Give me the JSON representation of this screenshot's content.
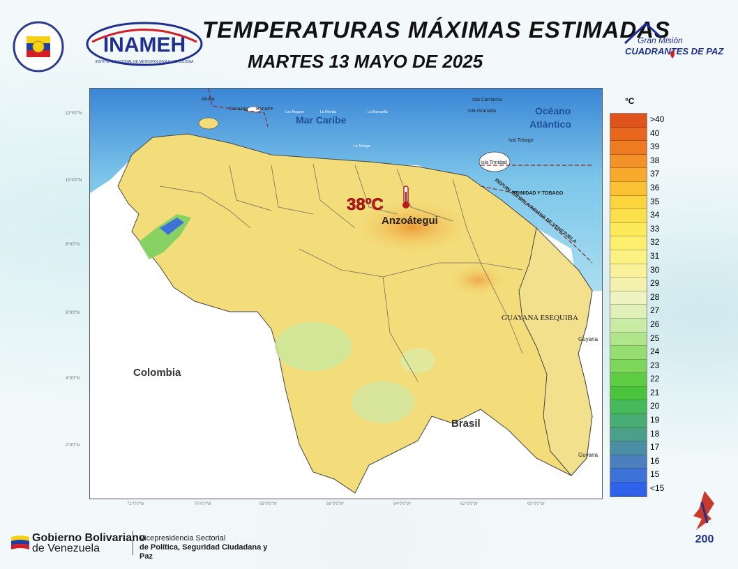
{
  "header": {
    "title": "TEMPERATURAS MÁXIMAS ESTIMADAS",
    "date": "MARTES 13 MAYO DE 2025",
    "inameh_logo_text": "INAMEH",
    "inameh_logo_subtext": "INSTITUTO NACIONAL DE METEOROLOGÍA E HIDROLOGÍA",
    "mission_logo_line1": "Gran Misión",
    "mission_logo_line2": "CUADRANTES DE PAZ"
  },
  "map": {
    "labels": {
      "mar_caribe": "Mar Caribe",
      "oceano": "Océano",
      "atlantico": "Atlántico",
      "colombia": "Colombia",
      "brasil": "Brasil",
      "guayana_esequiba": "GUAYANA ESEQUIBA",
      "guyana1": "Guyana",
      "guyana2": "Guyana",
      "trinidad_tobago": "TRINIDAD Y TOBAGO",
      "republica": "REPUBLICA BOLIVARIANA DE VENEZUELA",
      "aruba": "Aruba",
      "curazao": "Curazao",
      "bonaire": "Bonaire",
      "los_roques": "Los Roques",
      "la_orchila": "La Orchila",
      "la_blanquilla": "La Blanquilla",
      "la_tortuga": "La Tortuga",
      "carriacou": "Isla Carriacou",
      "granada": "Isla Granada",
      "tobago": "Isla Tobago",
      "trinidad": "Isla Trinidad"
    },
    "highlight": {
      "value": "38ºC",
      "state": "Anzoátegui"
    },
    "lat_ticks": [
      "12°0'0\"N",
      "10°0'0\"N",
      "8°0'0\"N",
      "6°0'0\"N",
      "4°0'0\"N",
      "2°0'0\"N"
    ],
    "lon_ticks": [
      "72°0'0\"W",
      "70°0'0\"W",
      "68°0'0\"W",
      "66°0'0\"W",
      "64°0'0\"W",
      "62°0'0\"W",
      "60°0'0\"W"
    ]
  },
  "legend": {
    "unit": "°C",
    "items": [
      {
        "label": ">40",
        "color": "#e0541c"
      },
      {
        "label": "40",
        "color": "#e8661e"
      },
      {
        "label": "39",
        "color": "#ee7a22"
      },
      {
        "label": "38",
        "color": "#f39228"
      },
      {
        "label": "37",
        "color": "#f7aa2c"
      },
      {
        "label": "36",
        "color": "#fac232"
      },
      {
        "label": "35",
        "color": "#fbd43e"
      },
      {
        "label": "34",
        "color": "#fbe04c"
      },
      {
        "label": "33",
        "color": "#fcea5a"
      },
      {
        "label": "32",
        "color": "#fcef6e"
      },
      {
        "label": "31",
        "color": "#fcf284"
      },
      {
        "label": "30",
        "color": "#f9f29a"
      },
      {
        "label": "29",
        "color": "#f4f1ae"
      },
      {
        "label": "28",
        "color": "#eef3c0"
      },
      {
        "label": "27",
        "color": "#dff1b8"
      },
      {
        "label": "26",
        "color": "#c9eca4"
      },
      {
        "label": "25",
        "color": "#b0e58c"
      },
      {
        "label": "24",
        "color": "#96de72"
      },
      {
        "label": "23",
        "color": "#7bd65a"
      },
      {
        "label": "22",
        "color": "#5fcd44"
      },
      {
        "label": "21",
        "color": "#4ac43c"
      },
      {
        "label": "20",
        "color": "#46b95a"
      },
      {
        "label": "19",
        "color": "#48ad72"
      },
      {
        "label": "18",
        "color": "#4aa088"
      },
      {
        "label": "17",
        "color": "#4a8fa4"
      },
      {
        "label": "16",
        "color": "#4a80c0"
      },
      {
        "label": "15",
        "color": "#3f72d8"
      },
      {
        "label": "<15",
        "color": "#2f62ea"
      }
    ]
  },
  "footer": {
    "gov_line1": "Gobierno Bolivariano",
    "gov_line2": "de Venezuela",
    "vice_line1": "Vicepresidencia Sectorial",
    "vice_line2": "de Política, Seguridad Ciudadana y Paz",
    "emblem_number": "200"
  },
  "colors": {
    "sea": "#8fd3ea",
    "deep_sea": "#3a86d4",
    "land_base": "#f3dc7a",
    "hot_zone": "#f0a63a",
    "highlight_text": "#c0171c"
  }
}
